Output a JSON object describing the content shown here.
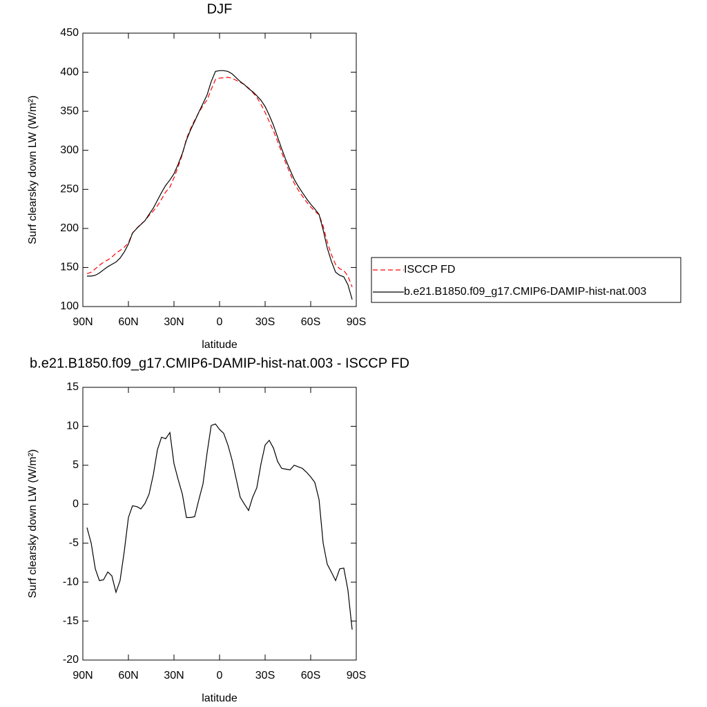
{
  "chart_data": [
    {
      "type": "line",
      "title": "DJF",
      "xlabel": "latitude",
      "ylabel": "Surf clearsky down LW (W/m²)",
      "x": [
        87.3,
        84.5,
        81.8,
        79.1,
        76.4,
        73.6,
        70.9,
        68.2,
        65.5,
        62.7,
        60.0,
        57.3,
        54.5,
        51.8,
        49.1,
        46.4,
        43.6,
        40.9,
        38.2,
        35.5,
        32.7,
        30.0,
        27.3,
        24.5,
        21.8,
        19.1,
        16.4,
        13.6,
        10.9,
        8.2,
        5.5,
        2.7,
        0.0,
        -2.7,
        -5.5,
        -8.2,
        -10.9,
        -13.6,
        -16.4,
        -19.1,
        -21.8,
        -24.5,
        -27.3,
        -30.0,
        -32.7,
        -35.5,
        -38.2,
        -40.9,
        -43.6,
        -46.4,
        -49.1,
        -51.8,
        -54.5,
        -57.3,
        -60.0,
        -62.7,
        -65.5,
        -68.2,
        -70.9,
        -73.6,
        -76.4,
        -79.1,
        -81.8,
        -84.5,
        -87.3
      ],
      "series": [
        {
          "name": "ISCCP FD",
          "color": "#ff0000",
          "dash": true,
          "values": [
            142,
            144,
            148.3,
            152.8,
            156.7,
            159.7,
            163.2,
            168.3,
            171.8,
            176,
            181.7,
            194.2,
            200.3,
            205.6,
            209.9,
            216.7,
            222.2,
            229,
            237.4,
            246.6,
            252.8,
            264.8,
            278.8,
            294.7,
            314.7,
            327.7,
            338.6,
            348.4,
            357.4,
            364.4,
            377.9,
            390.7,
            392.4,
            392.9,
            393.4,
            392.3,
            389.7,
            387.1,
            384,
            379.8,
            374.1,
            367.9,
            358.8,
            348.4,
            336.8,
            324.8,
            311.5,
            297.4,
            283.5,
            270.6,
            258,
            249.2,
            241.4,
            233.9,
            227.5,
            222.2,
            217.4,
            203,
            182.7,
            166.7,
            153.8,
            148.3,
            146.2,
            139,
            125.1
          ]
        },
        {
          "name": "b.e21.B1850.f09_g17.CMIP6-DAMIP-hist-nat.003",
          "color": "#000000",
          "dash": false,
          "values": [
            139,
            139,
            140,
            143,
            147,
            151,
            154,
            157,
            162,
            170,
            180,
            194,
            200,
            205,
            210,
            218,
            226,
            236,
            246,
            255,
            262,
            270,
            282,
            296,
            313,
            326,
            337,
            349,
            360,
            371,
            388,
            401,
            402,
            402,
            401,
            398,
            393,
            388,
            384,
            379,
            375,
            370,
            364,
            356,
            345,
            332,
            317,
            302,
            288,
            275,
            263,
            254,
            246,
            238,
            231,
            225,
            218,
            198,
            175,
            158,
            144,
            140,
            138,
            128,
            109
          ]
        }
      ],
      "xlim": [
        90,
        -90
      ],
      "ylim": [
        100,
        450
      ],
      "xticks": [
        {
          "value": 90,
          "label": "90N"
        },
        {
          "value": 60,
          "label": "60N"
        },
        {
          "value": 30,
          "label": "30N"
        },
        0,
        {
          "value": -30,
          "label": "30S"
        },
        {
          "value": -60,
          "label": "60S"
        },
        {
          "value": -90,
          "label": "90S"
        }
      ],
      "yticks": [
        100,
        150,
        200,
        250,
        300,
        350,
        400,
        450
      ],
      "legend": "right"
    },
    {
      "type": "line",
      "title": "b.e21.B1850.f09_g17.CMIP6-DAMIP-hist-nat.003 - ISCCP FD",
      "xlabel": "latitude",
      "ylabel": "Surf clearsky down LW (W/m²)",
      "x": [
        87.3,
        84.5,
        81.8,
        79.1,
        76.4,
        73.6,
        70.9,
        68.2,
        65.5,
        62.7,
        60.0,
        57.3,
        54.5,
        51.8,
        49.1,
        46.4,
        43.6,
        40.9,
        38.2,
        35.5,
        32.7,
        30.0,
        27.3,
        24.5,
        21.8,
        19.1,
        16.4,
        13.6,
        10.9,
        8.2,
        5.5,
        2.7,
        0.0,
        -2.7,
        -5.5,
        -8.2,
        -10.9,
        -13.6,
        -16.4,
        -19.1,
        -21.8,
        -24.5,
        -27.3,
        -30.0,
        -32.7,
        -35.5,
        -38.2,
        -40.9,
        -43.6,
        -46.4,
        -49.1,
        -51.8,
        -54.5,
        -57.3,
        -60.0,
        -62.7,
        -65.5,
        -68.2,
        -70.9,
        -73.6,
        -76.4,
        -79.1,
        -81.8,
        -84.5,
        -87.3
      ],
      "series": [
        {
          "color": "#000000",
          "dash": false,
          "values": [
            -3,
            -5,
            -8.3,
            -9.8,
            -9.7,
            -8.7,
            -9.2,
            -11.3,
            -9.8,
            -6,
            -1.7,
            -0.2,
            -0.3,
            -0.6,
            0.1,
            1.3,
            3.8,
            7,
            8.6,
            8.4,
            9.2,
            5.2,
            3.2,
            1.3,
            -1.7,
            -1.7,
            -1.6,
            0.6,
            2.6,
            6.6,
            10.1,
            10.3,
            9.6,
            9.1,
            7.6,
            5.7,
            3.3,
            0.9,
            0,
            -0.8,
            0.9,
            2.1,
            5.2,
            7.6,
            8.2,
            7.2,
            5.5,
            4.6,
            4.5,
            4.4,
            5,
            4.8,
            4.6,
            4.1,
            3.5,
            2.8,
            0.6,
            -5,
            -7.7,
            -8.7,
            -9.8,
            -8.3,
            -8.2,
            -11,
            -16.1
          ]
        }
      ],
      "xlim": [
        90,
        -90
      ],
      "ylim": [
        -20,
        15
      ],
      "xticks": [
        {
          "value": 90,
          "label": "90N"
        },
        {
          "value": 60,
          "label": "60N"
        },
        {
          "value": 30,
          "label": "30N"
        },
        0,
        {
          "value": -30,
          "label": "30S"
        },
        {
          "value": -60,
          "label": "60S"
        },
        {
          "value": -90,
          "label": "90S"
        }
      ],
      "yticks": [
        -20,
        -15,
        -10,
        -5,
        0,
        5,
        10,
        15
      ]
    }
  ]
}
